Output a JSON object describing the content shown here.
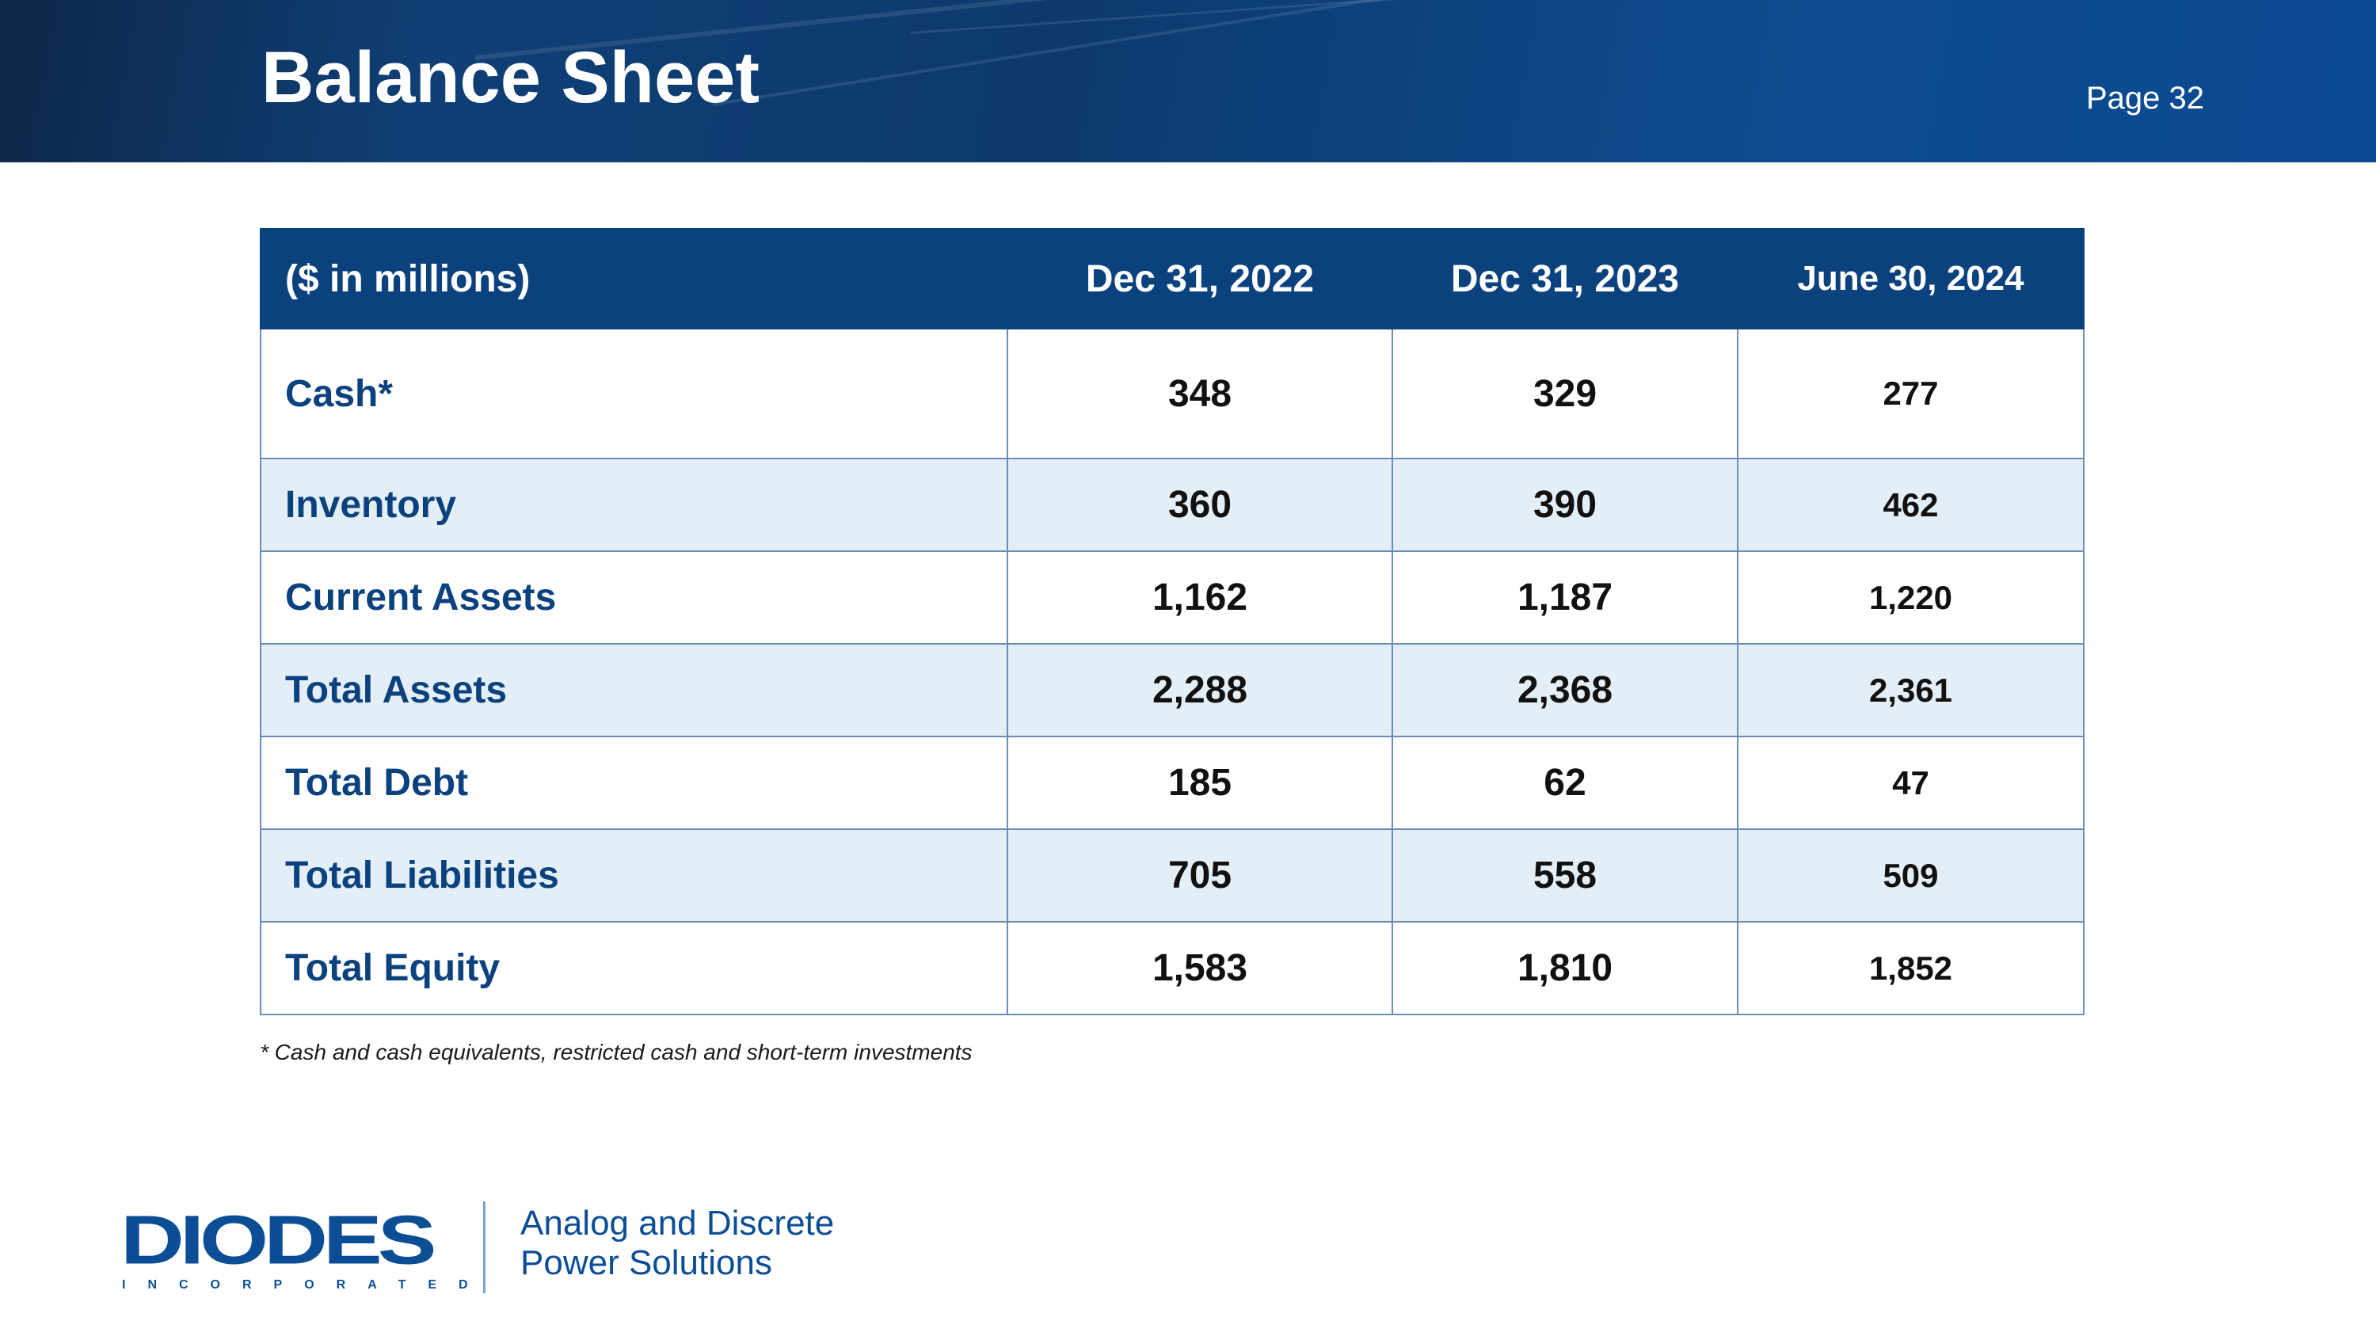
{
  "header": {
    "title": "Balance Sheet",
    "page_label": "Page 32"
  },
  "table": {
    "columns": [
      "($ in millions)",
      "Dec 31, 2022",
      "Dec 31, 2023",
      "June 30, 2024"
    ],
    "rows": [
      {
        "label": "Cash*",
        "values": [
          "348",
          "329",
          "277"
        ]
      },
      {
        "label": "Inventory",
        "values": [
          "360",
          "390",
          "462"
        ]
      },
      {
        "label": "Current Assets",
        "values": [
          "1,162",
          "1,187",
          "1,220"
        ]
      },
      {
        "label": "Total Assets",
        "values": [
          "2,288",
          "2,368",
          "2,361"
        ]
      },
      {
        "label": "Total Debt",
        "values": [
          "185",
          "62",
          "47"
        ]
      },
      {
        "label": "Total Liabilities",
        "values": [
          "705",
          "558",
          "509"
        ]
      },
      {
        "label": "Total Equity",
        "values": [
          "1,583",
          "1,810",
          "1,852"
        ]
      }
    ]
  },
  "footnote": "* Cash and cash equivalents, restricted cash and short-term investments",
  "logo": {
    "wordmark": "DIODES",
    "subtitle": "INCORPORATED",
    "tagline_line1": "Analog and Discrete",
    "tagline_line2": "Power Solutions"
  },
  "colors": {
    "header_bg": "#0b427e",
    "label_text": "#0b427e",
    "alt_row_bg": "#e3eef6",
    "brand_blue": "#0b4e96"
  }
}
